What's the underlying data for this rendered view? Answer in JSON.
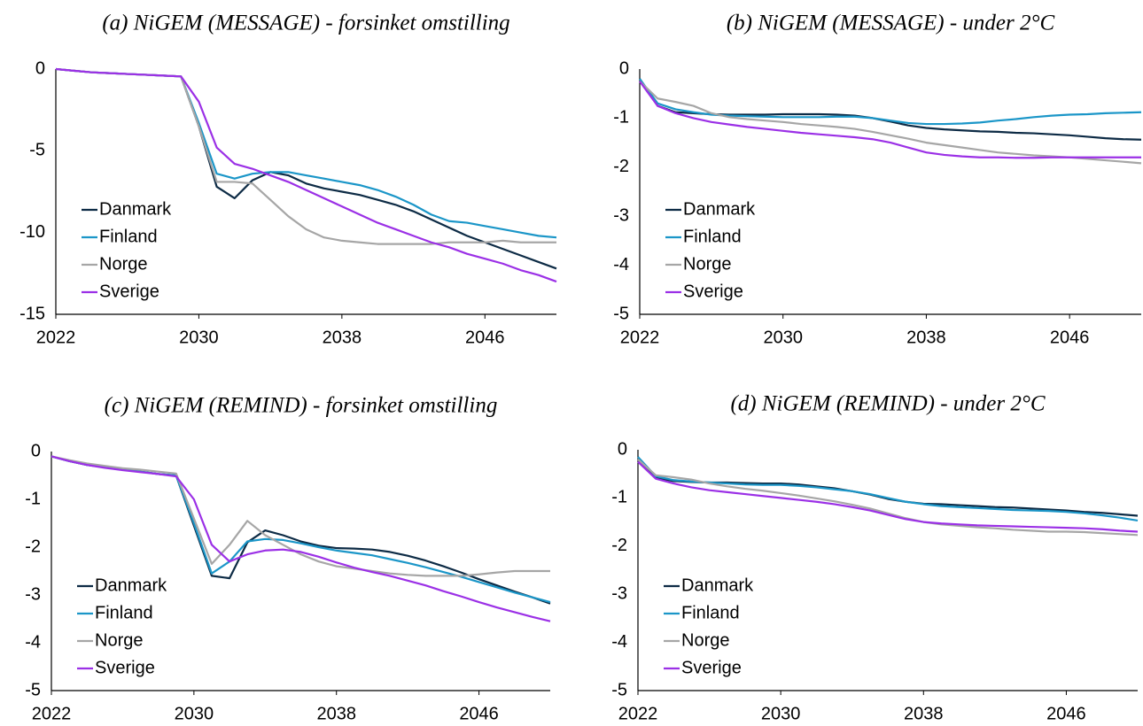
{
  "chart_data": [
    {
      "type": "line",
      "title": "(a) NiGEM (MESSAGE) - forsinket omstilling",
      "legend": "lower left",
      "x": [
        2022,
        2023,
        2024,
        2025,
        2026,
        2027,
        2028,
        2029,
        2030,
        2031,
        2032,
        2033,
        2034,
        2035,
        2036,
        2037,
        2038,
        2039,
        2040,
        2041,
        2042,
        2043,
        2044,
        2045,
        2046,
        2047,
        2048,
        2049,
        2050
      ],
      "xlim": [
        2022,
        2050
      ],
      "xticks": [
        2022,
        2030,
        2038,
        2046
      ],
      "ylim": [
        -15,
        0
      ],
      "yticks": [
        0,
        -5,
        -10,
        -15
      ],
      "series": [
        {
          "name": "Danmark",
          "color": "#0d2b45",
          "values": [
            0,
            -0.1,
            -0.2,
            -0.25,
            -0.3,
            -0.35,
            -0.4,
            -0.45,
            -3.5,
            -7.2,
            -7.9,
            -6.8,
            -6.3,
            -6.5,
            -7.0,
            -7.3,
            -7.5,
            -7.7,
            -8.0,
            -8.3,
            -8.7,
            -9.2,
            -9.7,
            -10.2,
            -10.6,
            -11.0,
            -11.4,
            -11.8,
            -12.2
          ]
        },
        {
          "name": "Finland",
          "color": "#1b96c8",
          "values": [
            0,
            -0.1,
            -0.2,
            -0.25,
            -0.3,
            -0.35,
            -0.4,
            -0.45,
            -3.3,
            -6.4,
            -6.7,
            -6.4,
            -6.3,
            -6.3,
            -6.5,
            -6.7,
            -6.9,
            -7.1,
            -7.4,
            -7.8,
            -8.3,
            -8.9,
            -9.3,
            -9.4,
            -9.6,
            -9.8,
            -10.0,
            -10.2,
            -10.3
          ]
        },
        {
          "name": "Norge",
          "color": "#a6a6a6",
          "values": [
            0,
            -0.1,
            -0.2,
            -0.25,
            -0.3,
            -0.35,
            -0.4,
            -0.45,
            -3.5,
            -6.9,
            -6.9,
            -7.0,
            -8.0,
            -9.0,
            -9.8,
            -10.3,
            -10.5,
            -10.6,
            -10.7,
            -10.7,
            -10.7,
            -10.7,
            -10.6,
            -10.6,
            -10.6,
            -10.5,
            -10.6,
            -10.6,
            -10.6
          ]
        },
        {
          "name": "Sverige",
          "color": "#9b30e6",
          "values": [
            0,
            -0.1,
            -0.2,
            -0.25,
            -0.3,
            -0.35,
            -0.4,
            -0.45,
            -2.0,
            -4.8,
            -5.8,
            -6.1,
            -6.5,
            -6.9,
            -7.4,
            -7.9,
            -8.4,
            -8.9,
            -9.4,
            -9.8,
            -10.2,
            -10.6,
            -10.9,
            -11.3,
            -11.6,
            -11.9,
            -12.3,
            -12.6,
            -13.0
          ]
        }
      ]
    },
    {
      "type": "line",
      "title": "(b) NiGEM (MESSAGE) - under 2°C",
      "legend": "lower left",
      "x": [
        2022,
        2023,
        2024,
        2025,
        2026,
        2027,
        2028,
        2029,
        2030,
        2031,
        2032,
        2033,
        2034,
        2035,
        2036,
        2037,
        2038,
        2039,
        2040,
        2041,
        2042,
        2043,
        2044,
        2045,
        2046,
        2047,
        2048,
        2049,
        2050
      ],
      "xlim": [
        2022,
        2050
      ],
      "xticks": [
        2022,
        2030,
        2038,
        2046
      ],
      "ylim": [
        -5,
        0
      ],
      "yticks": [
        0,
        -1,
        -2,
        -3,
        -4,
        -5
      ],
      "series": [
        {
          "name": "Danmark",
          "color": "#0d2b45",
          "values": [
            -0.2,
            -0.75,
            -0.88,
            -0.9,
            -0.92,
            -0.93,
            -0.93,
            -0.93,
            -0.92,
            -0.92,
            -0.92,
            -0.93,
            -0.95,
            -1.0,
            -1.07,
            -1.15,
            -1.2,
            -1.23,
            -1.25,
            -1.27,
            -1.28,
            -1.3,
            -1.31,
            -1.33,
            -1.35,
            -1.38,
            -1.41,
            -1.43,
            -1.44
          ]
        },
        {
          "name": "Finland",
          "color": "#1b96c8",
          "values": [
            -0.2,
            -0.7,
            -0.82,
            -0.88,
            -0.93,
            -0.95,
            -0.96,
            -0.97,
            -0.98,
            -0.98,
            -0.98,
            -0.97,
            -0.97,
            -1.0,
            -1.05,
            -1.1,
            -1.12,
            -1.12,
            -1.11,
            -1.09,
            -1.05,
            -1.02,
            -0.98,
            -0.95,
            -0.93,
            -0.92,
            -0.9,
            -0.89,
            -0.88
          ]
        },
        {
          "name": "Norge",
          "color": "#a6a6a6",
          "values": [
            -0.25,
            -0.6,
            -0.67,
            -0.75,
            -0.9,
            -0.98,
            -1.02,
            -1.05,
            -1.08,
            -1.12,
            -1.15,
            -1.18,
            -1.22,
            -1.28,
            -1.35,
            -1.42,
            -1.5,
            -1.55,
            -1.6,
            -1.65,
            -1.7,
            -1.73,
            -1.76,
            -1.78,
            -1.8,
            -1.83,
            -1.86,
            -1.89,
            -1.92
          ]
        },
        {
          "name": "Sverige",
          "color": "#9b30e6",
          "values": [
            -0.25,
            -0.75,
            -0.9,
            -1.0,
            -1.08,
            -1.13,
            -1.18,
            -1.22,
            -1.26,
            -1.3,
            -1.33,
            -1.36,
            -1.39,
            -1.43,
            -1.5,
            -1.6,
            -1.7,
            -1.75,
            -1.78,
            -1.8,
            -1.8,
            -1.81,
            -1.81,
            -1.8,
            -1.8,
            -1.8,
            -1.8,
            -1.8,
            -1.8
          ]
        }
      ]
    },
    {
      "type": "line",
      "title": "(c) NiGEM (REMIND) - forsinket omstilling",
      "legend": "lower left",
      "x": [
        2022,
        2023,
        2024,
        2025,
        2026,
        2027,
        2028,
        2029,
        2030,
        2031,
        2032,
        2033,
        2034,
        2035,
        2036,
        2037,
        2038,
        2039,
        2040,
        2041,
        2042,
        2043,
        2044,
        2045,
        2046,
        2047,
        2048,
        2049,
        2050
      ],
      "xlim": [
        2022,
        2050
      ],
      "xticks": [
        2022,
        2030,
        2038,
        2046
      ],
      "ylim": [
        -5,
        0
      ],
      "yticks": [
        0,
        -1,
        -2,
        -3,
        -4,
        -5
      ],
      "series": [
        {
          "name": "Danmark",
          "color": "#0d2b45",
          "values": [
            -0.1,
            -0.2,
            -0.28,
            -0.33,
            -0.38,
            -0.42,
            -0.47,
            -0.5,
            -1.55,
            -2.6,
            -2.65,
            -1.9,
            -1.65,
            -1.75,
            -1.88,
            -1.97,
            -2.02,
            -2.03,
            -2.05,
            -2.1,
            -2.18,
            -2.28,
            -2.4,
            -2.53,
            -2.67,
            -2.8,
            -2.93,
            -3.05,
            -3.18
          ]
        },
        {
          "name": "Finland",
          "color": "#1b96c8",
          "values": [
            -0.1,
            -0.2,
            -0.28,
            -0.33,
            -0.38,
            -0.42,
            -0.47,
            -0.5,
            -1.5,
            -2.55,
            -2.3,
            -1.88,
            -1.83,
            -1.85,
            -1.92,
            -2.0,
            -2.07,
            -2.12,
            -2.17,
            -2.25,
            -2.33,
            -2.42,
            -2.52,
            -2.62,
            -2.73,
            -2.84,
            -2.95,
            -3.05,
            -3.15
          ]
        },
        {
          "name": "Norge",
          "color": "#a6a6a6",
          "values": [
            -0.1,
            -0.18,
            -0.25,
            -0.3,
            -0.35,
            -0.38,
            -0.42,
            -0.46,
            -1.4,
            -2.35,
            -1.95,
            -1.45,
            -1.75,
            -1.95,
            -2.15,
            -2.3,
            -2.4,
            -2.45,
            -2.5,
            -2.55,
            -2.58,
            -2.6,
            -2.6,
            -2.6,
            -2.57,
            -2.53,
            -2.5,
            -2.5,
            -2.5
          ]
        },
        {
          "name": "Sverige",
          "color": "#9b30e6",
          "values": [
            -0.1,
            -0.2,
            -0.28,
            -0.34,
            -0.39,
            -0.43,
            -0.47,
            -0.52,
            -1.0,
            -1.95,
            -2.3,
            -2.15,
            -2.07,
            -2.05,
            -2.1,
            -2.2,
            -2.32,
            -2.43,
            -2.52,
            -2.6,
            -2.7,
            -2.8,
            -2.92,
            -3.03,
            -3.15,
            -3.26,
            -3.36,
            -3.46,
            -3.55
          ]
        }
      ]
    },
    {
      "type": "line",
      "title": "(d) NiGEM (REMIND) - under 2°C",
      "legend": "lower left",
      "x": [
        2022,
        2023,
        2024,
        2025,
        2026,
        2027,
        2028,
        2029,
        2030,
        2031,
        2032,
        2033,
        2034,
        2035,
        2036,
        2037,
        2038,
        2039,
        2040,
        2041,
        2042,
        2043,
        2044,
        2045,
        2046,
        2047,
        2048,
        2049,
        2050
      ],
      "xlim": [
        2022,
        2050
      ],
      "xticks": [
        2022,
        2030,
        2038,
        2046
      ],
      "ylim": [
        -5,
        0
      ],
      "yticks": [
        0,
        -1,
        -2,
        -3,
        -4,
        -5
      ],
      "series": [
        {
          "name": "Danmark",
          "color": "#0d2b45",
          "values": [
            -0.2,
            -0.58,
            -0.65,
            -0.67,
            -0.68,
            -0.68,
            -0.69,
            -0.7,
            -0.7,
            -0.72,
            -0.76,
            -0.8,
            -0.86,
            -0.93,
            -1.02,
            -1.08,
            -1.12,
            -1.13,
            -1.15,
            -1.17,
            -1.19,
            -1.2,
            -1.22,
            -1.24,
            -1.26,
            -1.29,
            -1.31,
            -1.34,
            -1.37
          ]
        },
        {
          "name": "Finland",
          "color": "#1b96c8",
          "values": [
            -0.15,
            -0.55,
            -0.63,
            -0.66,
            -0.68,
            -0.7,
            -0.72,
            -0.73,
            -0.73,
            -0.75,
            -0.78,
            -0.82,
            -0.86,
            -0.92,
            -1.0,
            -1.08,
            -1.13,
            -1.17,
            -1.19,
            -1.21,
            -1.23,
            -1.25,
            -1.26,
            -1.27,
            -1.29,
            -1.32,
            -1.36,
            -1.41,
            -1.47
          ]
        },
        {
          "name": "Norge",
          "color": "#a6a6a6",
          "values": [
            -0.2,
            -0.53,
            -0.57,
            -0.62,
            -0.7,
            -0.76,
            -0.81,
            -0.85,
            -0.9,
            -0.95,
            -1.01,
            -1.07,
            -1.14,
            -1.22,
            -1.32,
            -1.42,
            -1.5,
            -1.55,
            -1.58,
            -1.61,
            -1.63,
            -1.66,
            -1.68,
            -1.7,
            -1.7,
            -1.71,
            -1.73,
            -1.75,
            -1.77
          ]
        },
        {
          "name": "Sverige",
          "color": "#9b30e6",
          "values": [
            -0.25,
            -0.6,
            -0.7,
            -0.78,
            -0.84,
            -0.88,
            -0.92,
            -0.96,
            -1.0,
            -1.04,
            -1.08,
            -1.13,
            -1.19,
            -1.26,
            -1.35,
            -1.44,
            -1.5,
            -1.53,
            -1.55,
            -1.57,
            -1.58,
            -1.59,
            -1.6,
            -1.61,
            -1.62,
            -1.63,
            -1.65,
            -1.68,
            -1.7
          ]
        }
      ]
    }
  ]
}
